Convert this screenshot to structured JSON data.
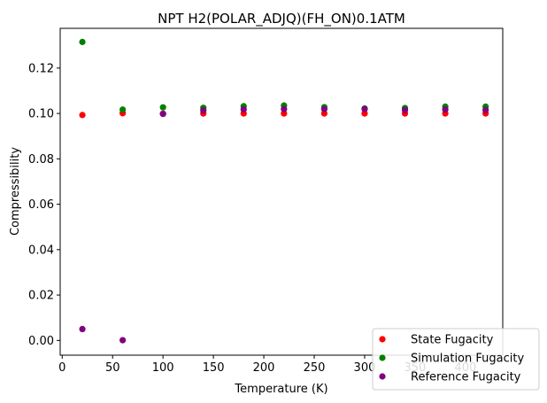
{
  "chart_data": {
    "type": "scatter",
    "title": "NPT H2(POLAR_ADJQ)(FH_ON)0.1ATM",
    "xlabel": "Temperature (K)",
    "ylabel": "Compressibility",
    "xlim": [
      -2,
      437
    ],
    "ylim": [
      -0.0065,
      0.1375
    ],
    "xticks": [
      0,
      50,
      100,
      150,
      200,
      250,
      300,
      350,
      400
    ],
    "xtick_labels": [
      "0",
      "50",
      "100",
      "150",
      "200",
      "250",
      "300",
      "350",
      "400"
    ],
    "yticks": [
      0.0,
      0.02,
      0.04,
      0.06,
      0.08,
      0.1,
      0.12
    ],
    "ytick_labels": [
      "0.00",
      "0.02",
      "0.04",
      "0.06",
      "0.08",
      "0.10",
      "0.12"
    ],
    "grid": false,
    "legend_position": "lower-right",
    "series": [
      {
        "name": "State Fugacity",
        "color": "#ff0000",
        "x": [
          20,
          60,
          100,
          140,
          180,
          220,
          260,
          300,
          340,
          380,
          420
        ],
        "y": [
          0.0993,
          0.1001,
          0.0999,
          0.1,
          0.1,
          0.1,
          0.1,
          0.1,
          0.1,
          0.1,
          0.1
        ]
      },
      {
        "name": "Simulation Fugacity",
        "color": "#008000",
        "x": [
          20,
          60,
          100,
          140,
          180,
          220,
          260,
          300,
          340,
          380,
          420
        ],
        "y": [
          0.1315,
          0.1017,
          0.1027,
          0.1025,
          0.1032,
          0.1035,
          0.1028,
          0.1022,
          0.1024,
          0.103,
          0.103
        ]
      },
      {
        "name": "Reference Fugacity",
        "color": "#800080",
        "x": [
          20,
          60,
          100,
          140,
          180,
          220,
          260,
          300,
          340,
          380,
          420
        ],
        "y": [
          0.005,
          0.0001,
          0.0998,
          0.1013,
          0.1018,
          0.1019,
          0.1019,
          0.1019,
          0.1015,
          0.1017,
          0.1015
        ]
      }
    ]
  }
}
